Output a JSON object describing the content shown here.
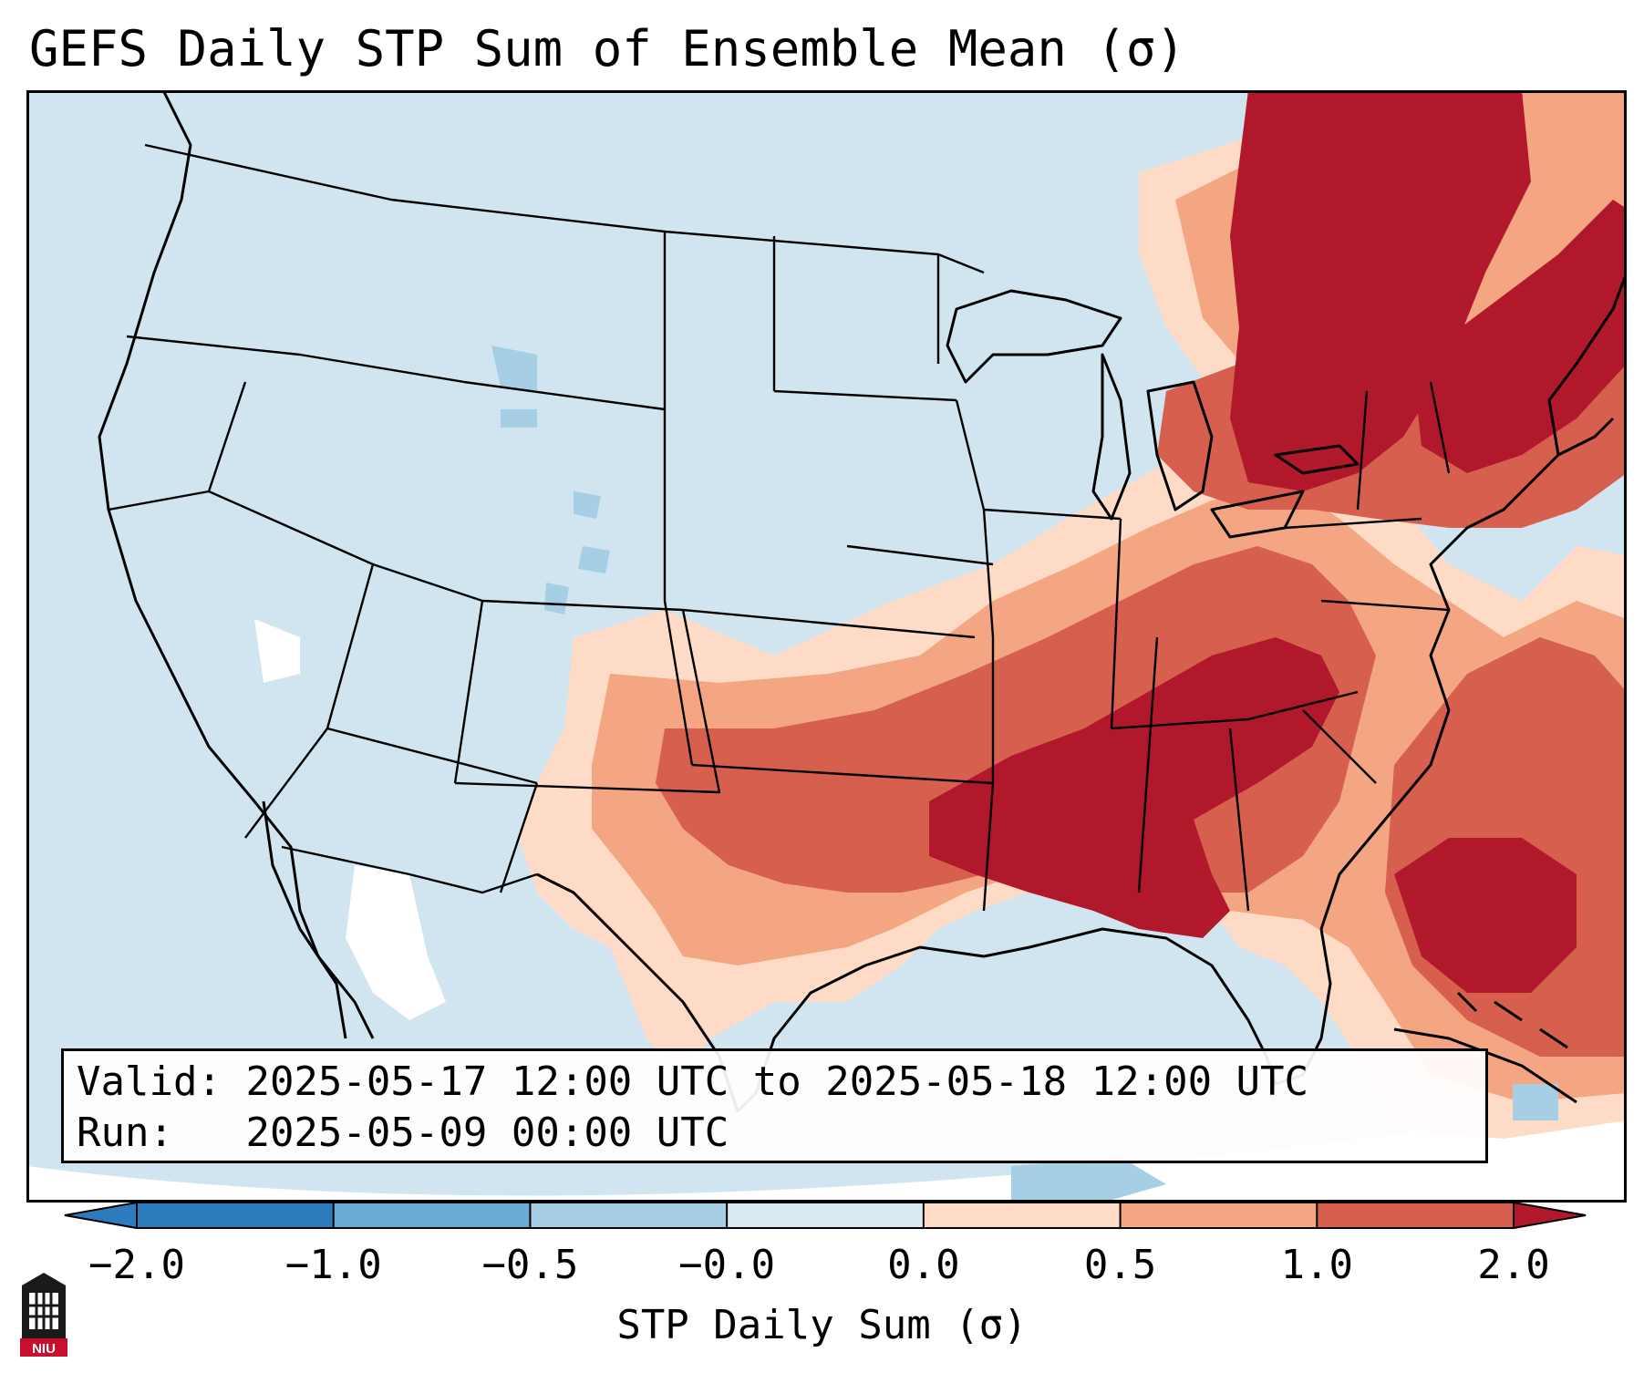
{
  "title": "GEFS Daily STP Sum of Ensemble Mean (σ)",
  "info": {
    "valid_label": "Valid:",
    "valid_value": "2025-05-17 12:00 UTC to 2025-05-18 12:00 UTC",
    "run_label": "Run:",
    "run_value": "2025-05-09 00:00 UTC"
  },
  "colorbar": {
    "label": "STP Daily Sum (σ)",
    "ticks": [
      "−2.0",
      "−1.0",
      "−0.5",
      "−0.0",
      "0.0",
      "0.5",
      "1.0",
      "2.0"
    ],
    "colors": [
      "#2c7bbd",
      "#6aaad5",
      "#a6cfe6",
      "#dcebf3",
      "#fddbc7",
      "#f4a582",
      "#d6604d",
      "#b2182b"
    ],
    "extend": "both"
  },
  "logo": {
    "text": "NIU",
    "icon": "niu-tower-logo"
  },
  "map": {
    "projection": "Lambert conformal, CONUS",
    "background_color": "#d1e5f0",
    "region_values": [
      {
        "region": "Tennessee Valley / Mid-South",
        "value_sigma": 2.0
      },
      {
        "region": "Mississippi / Alabama",
        "value_sigma": 2.0
      },
      {
        "region": "Ohio Valley",
        "value_sigma": 1.5
      },
      {
        "region": "Quebec / Ontario",
        "value_sigma": 2.0
      },
      {
        "region": "New England / New York",
        "value_sigma": 1.5
      },
      {
        "region": "Southern Plains (Oklahoma/Texas)",
        "value_sigma": 0.8
      },
      {
        "region": "Western Atlantic",
        "value_sigma": 1.2
      },
      {
        "region": "Rockies / Great Basin",
        "value_sigma": -0.3
      }
    ]
  }
}
